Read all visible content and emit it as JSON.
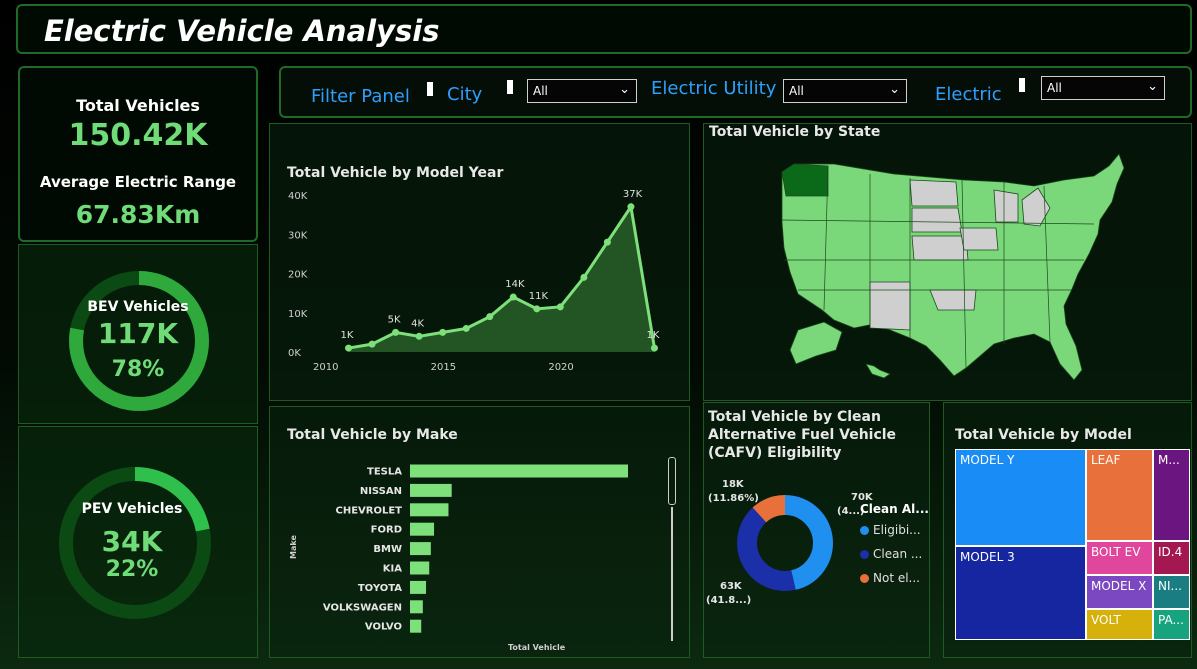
{
  "title": "Electric Vehicle Analysis",
  "kpis": {
    "total_label": "Total Vehicles",
    "total_value": "150.42K",
    "range_label": "Average Electric Range",
    "range_value": "67.83Km"
  },
  "bev": {
    "label": "BEV Vehicles",
    "value": "117K",
    "pct": "78%",
    "fraction": 0.78
  },
  "pev": {
    "label": "PEV Vehicles",
    "value": "34K",
    "pct": "22%",
    "fraction": 0.22
  },
  "filters": {
    "panel_label": "Filter Panel",
    "city_label": "City",
    "city_value": "All",
    "utility_label": "Electric Utility",
    "utility_value": "All",
    "electric_label": "Electric",
    "electric_value": "All"
  },
  "chart_data": [
    {
      "type": "area",
      "title": "Total Vehicle by Model Year",
      "x": [
        2011,
        2012,
        2013,
        2014,
        2015,
        2016,
        2017,
        2018,
        2019,
        2020,
        2021,
        2022,
        2023,
        2024
      ],
      "values": [
        1000,
        2000,
        5000,
        4000,
        5000,
        6000,
        9000,
        14000,
        11000,
        11500,
        19000,
        28000,
        37000,
        1000
      ],
      "labels": [
        "1K",
        "",
        "5K",
        "4K",
        "",
        "",
        "",
        "14K",
        "11K",
        "",
        "",
        "",
        "37K",
        "1K"
      ],
      "y_ticks": [
        "0K",
        "10K",
        "20K",
        "30K",
        "40K"
      ],
      "x_ticks": [
        "2010",
        "2015",
        "2020"
      ],
      "ylim": [
        0,
        40000
      ],
      "xlim": [
        2010,
        2025
      ],
      "color": "#7ee07a"
    },
    {
      "type": "bar",
      "title": "Total Vehicle by Make",
      "ylabel": "Make",
      "xlabel": "Total Vehicle",
      "categories": [
        "TESLA",
        "NISSAN",
        "CHEVROLET",
        "FORD",
        "BMW",
        "KIA",
        "TOYOTA",
        "VOLKSWAGEN",
        "VOLVO"
      ],
      "values": [
        68000,
        13000,
        12000,
        7500,
        6500,
        6000,
        5000,
        4000,
        3500
      ],
      "color": "#7ee07a"
    },
    {
      "type": "pie",
      "title": "Total Vehicle by Clean Alternative Fuel Vehicle (CAFV) Eligibility",
      "legend_title": "Clean Al...",
      "slices": [
        {
          "name": "Eligibi...",
          "value": 70000,
          "label1": "70K",
          "label2": "(4...)",
          "color": "#1f8ff0"
        },
        {
          "name": "Clean ...",
          "value": 63000,
          "label1": "63K",
          "label2": "(41.8...)",
          "color": "#1a2fa8"
        },
        {
          "name": "Not el...",
          "value": 18000,
          "label1": "18K",
          "label2": "(11.86%)",
          "color": "#e8703a"
        }
      ]
    },
    {
      "type": "heatmap",
      "title": "Total Vehicle by Model",
      "items": [
        {
          "name": "MODEL Y",
          "color": "#1a8cf5"
        },
        {
          "name": "MODEL 3",
          "color": "#1526a0"
        },
        {
          "name": "LEAF",
          "color": "#e8703a"
        },
        {
          "name": "M...",
          "color": "#6b1580"
        },
        {
          "name": "BOLT EV",
          "color": "#e0479c"
        },
        {
          "name": "ID.4",
          "color": "#a31850"
        },
        {
          "name": "MODEL X",
          "color": "#7b48c2"
        },
        {
          "name": "NI...",
          "color": "#1a7d82"
        },
        {
          "name": "VOLT",
          "color": "#d6b10c"
        },
        {
          "name": "PA...",
          "color": "#17a37e"
        }
      ]
    }
  ],
  "map": {
    "title": "Total Vehicle by State",
    "colors": {
      "high": "#0b6a1a",
      "med": "#7bd87a",
      "none": "#cfcfcf"
    }
  }
}
